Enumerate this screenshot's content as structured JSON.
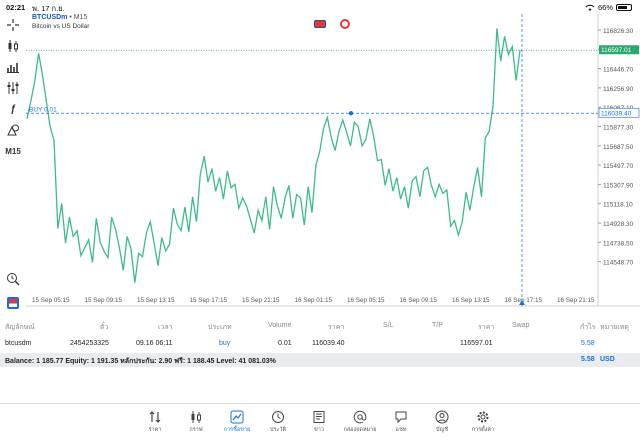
{
  "status": {
    "time": "02:21",
    "date": "พ. 17 ก.ย.",
    "battery": "66%"
  },
  "chart": {
    "symbol": "BTCUSDm",
    "timeframe": "• M15",
    "description": "Bitcoin vs US Dollar",
    "price_labels": [
      "116826.30",
      "116636.50",
      "116446.70",
      "116256.90",
      "116067.10",
      "115877.30",
      "115687.50",
      "115497.70",
      "115307.90",
      "115118.10",
      "114928.30",
      "114738.50",
      "114548.70"
    ],
    "time_labels": [
      "15 Sep 05:15",
      "15 Sep 09:15",
      "15 Sep 13:15",
      "15 Sep 17:15",
      "15 Sep 21:15",
      "16 Sep 01:15",
      "16 Sep 05:15",
      "16 Sep 09:15",
      "16 Sep 13:15",
      "16 Sep 17:15",
      "16 Sep 21:15"
    ],
    "current_price": "116597.01",
    "buy_label": "BUY 0.01",
    "buy_price": "116039.40",
    "colors": {
      "line": "#3dbb8a",
      "grid": "#e6e6e6",
      "buy": "#1a6fd6",
      "current": "#2aa86f"
    }
  },
  "chart_data": {
    "type": "line",
    "title": "BTCUSDm • M15",
    "xlabel": "",
    "ylabel": "",
    "ylim": [
      114440,
      116900
    ],
    "x_ticks": [
      "15 Sep 05:15",
      "15 Sep 09:15",
      "15 Sep 13:15",
      "15 Sep 17:15",
      "15 Sep 21:15",
      "16 Sep 01:15",
      "16 Sep 05:15",
      "16 Sep 09:15",
      "16 Sep 13:15",
      "16 Sep 17:15",
      "16 Sep 21:15"
    ],
    "series": [
      {
        "name": "",
        "values": [
          115990,
          116150,
          116320,
          116570,
          116380,
          116150,
          115920,
          115800,
          115020,
          115240,
          114890,
          115120,
          114950,
          115000,
          114780,
          114850,
          114920,
          114720,
          115110,
          114900,
          114820,
          114760,
          115120,
          115010,
          114850,
          114650,
          114950,
          114840,
          114540,
          114800,
          114770,
          114980,
          115080,
          114890,
          114690,
          114940,
          114820,
          114880,
          115200,
          115060,
          115000,
          115210,
          114990,
          115300,
          115080,
          115500,
          115660,
          115430,
          115550,
          115350,
          115470,
          115280,
          115530,
          115380,
          115410,
          115200,
          115290,
          115220,
          115100,
          114980,
          115180,
          115090,
          115300,
          115010,
          115390,
          115220,
          115110,
          115290,
          115400,
          115110,
          115320,
          115290,
          115050,
          115390,
          115160,
          115580,
          115700,
          115910,
          116000,
          115820,
          115710,
          115880,
          115980,
          115870,
          115750,
          115960,
          115920,
          115750,
          115810,
          115990,
          115840,
          115620,
          115630,
          115400,
          115550,
          115350,
          115470,
          115280,
          115390,
          115200,
          115440,
          115480,
          115300,
          115530,
          115560,
          115400,
          115300,
          115410,
          115330,
          115360,
          115040,
          115090,
          114960,
          115080,
          115340,
          115180,
          115390,
          115560,
          115300,
          115820,
          115880,
          116100,
          116790,
          116500,
          116720,
          116560,
          116630,
          116330,
          116597
        ]
      }
    ],
    "annotations": [
      {
        "text": "BUY 0.01",
        "value": 116039.4
      },
      {
        "text": "116597.01",
        "value": 116597.01
      }
    ]
  },
  "positions": {
    "headers": [
      "สัญลักษณ์",
      "ตั๋ว",
      "เวลา",
      "ประเภท",
      "Volume",
      "ราคา",
      "S/L",
      "T/P",
      "ราคา",
      "Swap",
      "กำไร",
      "หมายเหตุ"
    ],
    "row": {
      "symbol": "btcusdm",
      "ticket": "2454253325",
      "time": "09.16 06:11",
      "type": "buy",
      "volume": "0.01",
      "open_price": "116039.40",
      "current_price": "116597.01",
      "profit": "5.58"
    }
  },
  "summary": {
    "text": "Balance: 1 185.77 Equity: 1 191.35 หลักประกัน: 2.90 ฟรี: 1 188.45 Level: 41 081.03%",
    "total": "5.58",
    "currency": "USD"
  },
  "tabs": [
    {
      "label": "ราคา",
      "icon": "arrows-updown-icon"
    },
    {
      "label": "กราฟ",
      "icon": "candles-icon"
    },
    {
      "label": "การซื้อขาย",
      "icon": "trade-chart-icon",
      "active": true
    },
    {
      "label": "ประวัติ",
      "icon": "history-clock-icon"
    },
    {
      "label": "ข่าว",
      "icon": "news-icon"
    },
    {
      "label": "กล่องจดหมาย",
      "icon": "mail-at-icon"
    },
    {
      "label": "แชท",
      "icon": "chat-icon"
    },
    {
      "label": "บัญชี",
      "icon": "account-icon"
    },
    {
      "label": "การตั้งค่า",
      "icon": "settings-gear-icon"
    }
  ]
}
